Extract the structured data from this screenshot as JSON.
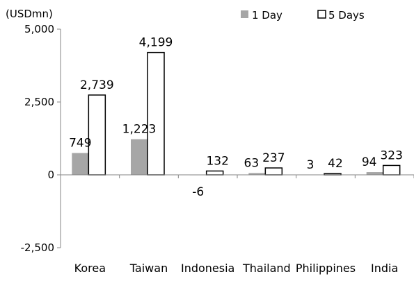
{
  "chart_data": {
    "type": "bar",
    "ylabel": "(USDmn)",
    "categories": [
      "Korea",
      "Taiwan",
      "Indonesia",
      "Thailand",
      "Philippines",
      "India"
    ],
    "series": [
      {
        "name": "1 Day",
        "values": [
          749,
          1223,
          -6,
          63,
          3,
          94
        ],
        "labels": [
          "749",
          "1,223",
          "-6",
          "63",
          "3",
          "94"
        ],
        "color": "#a6a6a6"
      },
      {
        "name": "5 Days",
        "values": [
          2739,
          4199,
          132,
          237,
          42,
          323
        ],
        "labels": [
          "2,739",
          "4,199",
          "132",
          "237",
          "42",
          "323"
        ],
        "color": "#ffffff",
        "stroke": "#000000"
      }
    ],
    "ylim": [
      -2500,
      5000
    ],
    "yticks": [
      -2500,
      0,
      2500,
      5000
    ],
    "ytick_labels": [
      "-2,500",
      "0",
      "2,500",
      "5,000"
    ],
    "legend_position": "top-right",
    "grid": false
  }
}
